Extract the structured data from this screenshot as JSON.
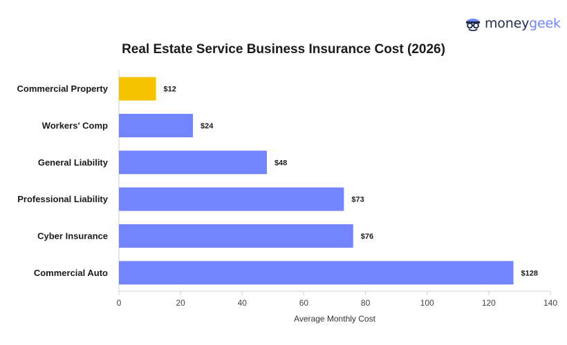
{
  "brand": {
    "logo_alt": "moneygeek",
    "logo_part1": "money",
    "logo_part2": "geek",
    "icon": "geek-face-logo-icon"
  },
  "chart_data": {
    "type": "bar",
    "orientation": "horizontal",
    "title": "Real Estate Service Business Insurance Cost (2026)",
    "xlabel": "Average Monthly Cost",
    "ylabel": "",
    "xlim": [
      0,
      140
    ],
    "xticks": [
      0,
      20,
      40,
      60,
      80,
      100,
      120,
      140
    ],
    "grid": false,
    "categories": [
      "Commercial Property",
      "Workers' Comp",
      "General Liability",
      "Professional Liability",
      "Cyber Insurance",
      "Commercial Auto"
    ],
    "values": [
      12,
      24,
      48,
      73,
      76,
      128
    ],
    "value_labels": [
      "$12",
      "$24",
      "$48",
      "$73",
      "$76",
      "$128"
    ],
    "colors": [
      "#f5c400",
      "#7285ff",
      "#7285ff",
      "#7285ff",
      "#7285ff",
      "#7285ff"
    ]
  }
}
